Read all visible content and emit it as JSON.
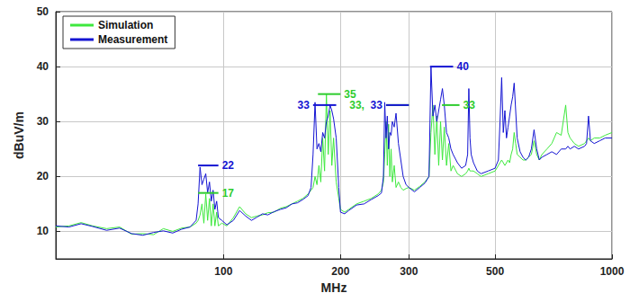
{
  "chart_data": {
    "type": "line",
    "xlabel": "MHz",
    "ylabel": "dBuV/m",
    "log": "x",
    "grid": true,
    "legend": "upper left",
    "xlim": [
      37,
      1000
    ],
    "xticks": [
      100,
      200,
      300,
      500,
      1000
    ],
    "ylim": [
      5,
      50
    ],
    "yticks": [
      10,
      20,
      30,
      40,
      50
    ],
    "x": [
      37,
      40,
      43,
      46,
      50,
      54,
      58,
      62,
      66,
      70,
      74,
      78,
      82,
      85,
      86,
      87,
      88,
      89,
      90,
      91,
      92,
      93,
      94,
      95,
      96,
      97,
      99,
      102,
      106,
      110,
      114,
      118,
      122,
      126,
      130,
      135,
      140,
      145,
      150,
      155,
      160,
      165,
      168,
      170,
      172,
      174,
      176,
      178,
      180,
      182,
      184,
      186,
      188,
      190,
      192,
      195,
      198,
      200,
      205,
      210,
      220,
      230,
      240,
      250,
      255,
      258,
      260,
      262,
      264,
      266,
      268,
      270,
      272,
      275,
      278,
      282,
      286,
      290,
      295,
      300,
      310,
      320,
      330,
      338,
      342,
      346,
      350,
      354,
      358,
      362,
      366,
      370,
      375,
      380,
      385,
      390,
      400,
      410,
      420,
      425,
      428,
      431,
      434,
      440,
      450,
      460,
      480,
      500,
      510,
      515,
      520,
      525,
      530,
      535,
      540,
      545,
      550,
      555,
      560,
      565,
      570,
      580,
      590,
      600,
      610,
      620,
      630,
      640,
      650,
      660,
      680,
      700,
      720,
      740,
      760,
      770,
      780,
      800,
      820,
      850,
      860,
      870,
      880,
      900,
      930,
      960,
      1000
    ],
    "series": [
      {
        "name": "Simulation",
        "color": "#3ee83e",
        "line_style": "solid",
        "values": [
          10.8,
          11.0,
          11.6,
          11.0,
          10.5,
          10.8,
          9.5,
          9.6,
          9.4,
          10.5,
          10.0,
          10.6,
          10.8,
          11.5,
          12.0,
          13.0,
          15.0,
          11.5,
          16.8,
          12.0,
          16.0,
          11.0,
          15.0,
          11.0,
          13.5,
          11.0,
          11.5,
          11.0,
          12.5,
          14.5,
          13.2,
          12.5,
          12.8,
          13.0,
          13.4,
          13.5,
          14.2,
          14.5,
          15.0,
          15.5,
          16.0,
          16.8,
          17.5,
          18.0,
          20.0,
          18.5,
          22.0,
          19.0,
          27.0,
          21.0,
          35.0,
          24.0,
          32.0,
          22.0,
          27.0,
          19.0,
          16.0,
          14.0,
          13.5,
          14.0,
          15.0,
          15.5,
          16.0,
          16.8,
          17.5,
          19.0,
          24.0,
          30.0,
          22.0,
          29.5,
          20.0,
          25.0,
          19.0,
          22.0,
          18.0,
          19.0,
          18.0,
          17.5,
          17.8,
          18.0,
          17.5,
          18.2,
          19.0,
          20.0,
          28.0,
          33.0,
          24.0,
          31.0,
          22.0,
          30.0,
          23.0,
          29.0,
          22.0,
          26.0,
          21.0,
          22.0,
          20.5,
          20.0,
          20.5,
          21.0,
          21.5,
          21.0,
          21.0,
          21.0,
          20.5,
          20.0,
          20.5,
          21.0,
          22.0,
          22.5,
          23.0,
          22.5,
          22.0,
          22.5,
          23.0,
          22.5,
          24.0,
          25.0,
          28.0,
          26.0,
          24.0,
          23.5,
          23.0,
          23.0,
          23.5,
          24.0,
          26.5,
          24.0,
          23.0,
          24.0,
          25.0,
          26.0,
          28.0,
          27.5,
          33.0,
          28.0,
          27.0,
          26.0,
          25.5,
          26.0,
          26.5,
          27.0,
          26.5,
          27.0,
          27.0,
          27.5,
          28.0
        ]
      },
      {
        "name": "Measurement",
        "color": "#1414d2",
        "line_style": "solid",
        "values": [
          11.0,
          10.8,
          11.4,
          10.9,
          10.2,
          10.6,
          9.6,
          9.3,
          9.8,
          10.1,
          9.7,
          10.4,
          10.8,
          12.0,
          15.0,
          21.7,
          18.5,
          19.5,
          20.5,
          17.0,
          19.0,
          15.5,
          17.5,
          14.0,
          15.5,
          12.5,
          12.0,
          11.2,
          12.0,
          13.8,
          12.8,
          12.0,
          12.6,
          13.2,
          13.0,
          13.6,
          14.0,
          14.3,
          15.0,
          15.2,
          15.8,
          16.5,
          18.0,
          24.0,
          33.5,
          25.0,
          26.0,
          24.5,
          28.0,
          27.0,
          30.0,
          31.0,
          33.0,
          32.0,
          30.5,
          27.0,
          18.0,
          13.5,
          13.2,
          13.8,
          14.8,
          15.0,
          15.8,
          16.5,
          17.0,
          20.0,
          33.5,
          27.0,
          31.0,
          25.0,
          28.0,
          27.5,
          30.0,
          29.0,
          31.5,
          26.0,
          23.0,
          20.0,
          18.5,
          18.0,
          17.2,
          18.0,
          18.8,
          20.0,
          40.0,
          31.0,
          33.0,
          30.0,
          32.0,
          34.0,
          36.0,
          33.0,
          28.0,
          27.0,
          25.0,
          24.0,
          22.5,
          21.5,
          22.0,
          24.0,
          36.0,
          27.0,
          24.0,
          22.5,
          21.0,
          20.5,
          21.0,
          21.5,
          23.0,
          30.0,
          38.0,
          28.0,
          32.0,
          27.0,
          29.0,
          31.0,
          33.0,
          34.5,
          37.0,
          32.0,
          27.0,
          24.5,
          23.5,
          23.0,
          23.5,
          25.0,
          28.5,
          25.0,
          23.0,
          23.5,
          24.0,
          24.5,
          24.0,
          25.0,
          25.0,
          25.5,
          25.0,
          25.5,
          25.0,
          25.5,
          26.0,
          31.0,
          26.5,
          26.0,
          26.5,
          27.0,
          27.0
        ]
      }
    ],
    "annotations": [
      {
        "text": "22",
        "color": "#1414d2",
        "x": [
          86,
          97
        ],
        "y": 22
      },
      {
        "text": "17",
        "color": "#2ecc2e",
        "x": [
          86,
          97
        ],
        "y": 17
      },
      {
        "text": "33",
        "color": "#1414d2",
        "x": [
          170,
          195
        ],
        "y": 33
      },
      {
        "text": "35",
        "color": "#2ecc2e",
        "x": [
          175,
          200
        ],
        "y": 35
      },
      {
        "text": "33,",
        "color": "#2ecc2e",
        "x": [
          262,
          300
        ],
        "y": 33
      },
      {
        "text": "33",
        "color": "#1414d2",
        "x": [
          262,
          300
        ],
        "y": 33
      },
      {
        "text": "40",
        "color": "#1414d2",
        "x": [
          340,
          390
        ],
        "y": 40
      },
      {
        "text": "33",
        "color": "#2ecc2e",
        "x": [
          365,
          405
        ],
        "y": 33
      }
    ]
  }
}
